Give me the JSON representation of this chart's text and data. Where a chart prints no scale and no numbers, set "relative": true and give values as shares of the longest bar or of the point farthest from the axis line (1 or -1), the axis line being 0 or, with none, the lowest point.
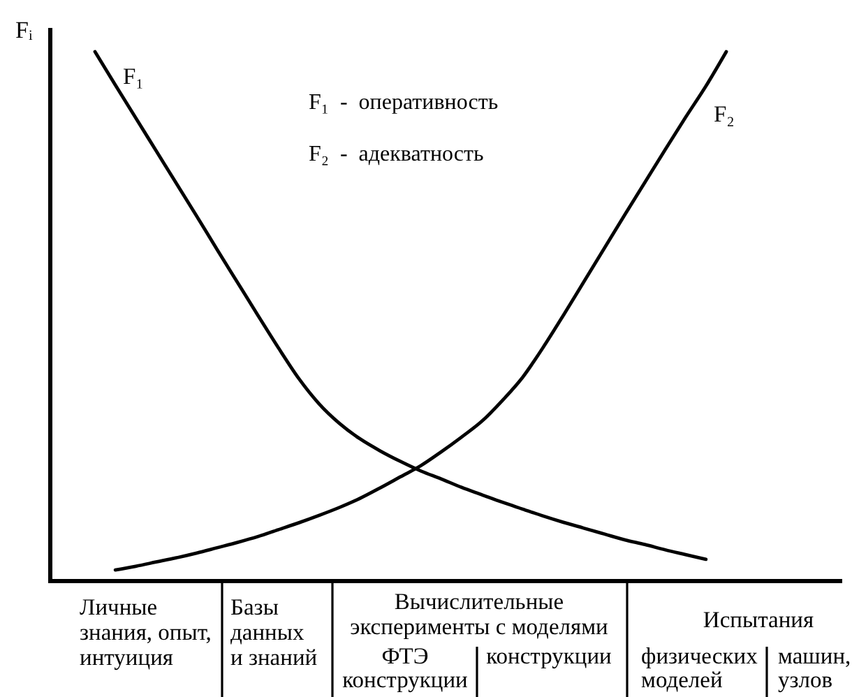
{
  "chart_data": {
    "type": "line",
    "ylabel": "Fᵢ",
    "relative": true,
    "line_style": "solid",
    "categories": [
      null,
      null,
      null,
      null,
      null,
      null,
      null,
      null,
      null,
      null,
      null,
      null,
      null,
      null,
      null,
      null,
      null,
      null,
      null,
      null,
      null,
      null,
      null,
      null,
      null,
      null,
      null,
      null,
      null,
      null,
      null,
      null
    ],
    "series": [
      {
        "name": "F₁",
        "color": "#000000",
        "values": [
          1.0,
          0.937,
          0.875,
          0.813,
          0.751,
          0.689,
          0.626,
          0.564,
          0.502,
          0.441,
          0.383,
          0.335,
          0.298,
          0.269,
          0.246,
          0.226,
          0.208,
          0.193,
          0.177,
          0.163,
          0.149,
          0.136,
          0.123,
          0.111,
          0.1,
          0.089,
          0.078,
          0.069,
          0.059,
          0.05,
          0.041,
          null
        ]
      },
      {
        "name": "F₂",
        "color": "#000000",
        "values": [
          null,
          0.021,
          0.028,
          0.036,
          0.044,
          0.053,
          0.063,
          0.073,
          0.084,
          0.097,
          0.11,
          0.124,
          0.139,
          0.156,
          0.176,
          0.197,
          0.218,
          0.244,
          0.272,
          0.302,
          0.341,
          0.385,
          0.441,
          0.502,
          0.565,
          0.628,
          0.691,
          0.753,
          0.815,
          0.876,
          0.935,
          1.0
        ]
      }
    ],
    "annotations": [
      "F₁ - оперативность",
      "F₂ - адекватность",
      "Личные\nзнания, опыт,\nинтуиция",
      "Базы\nданных\nи знаний",
      "Вычислительные\nэксперименты с моделями",
      "Испытания",
      "ФТЭ\nконструкции",
      "конструкции",
      "физических\nмоделей",
      "машин,\nузлов"
    ]
  }
}
